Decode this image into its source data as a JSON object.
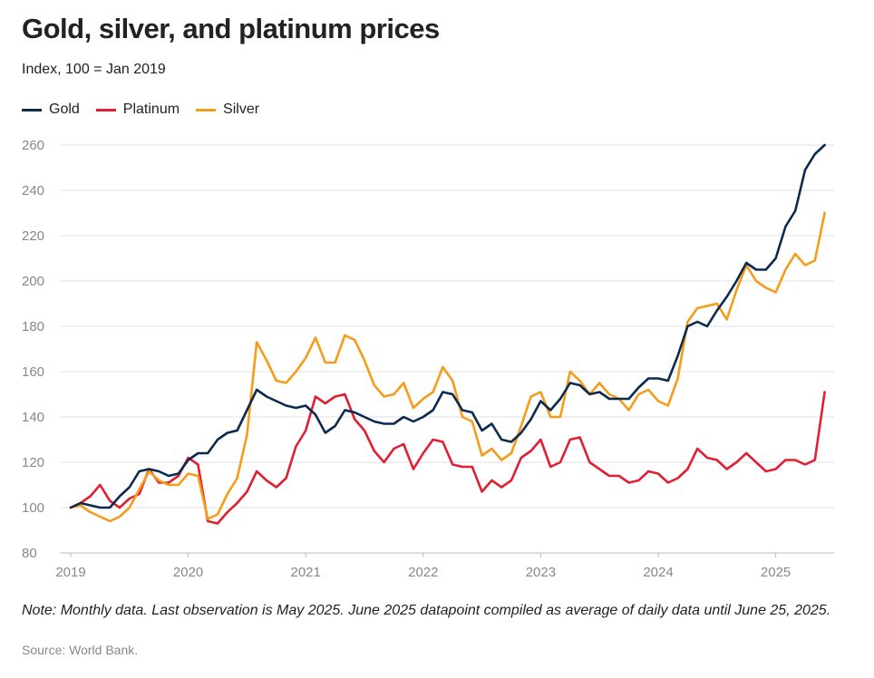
{
  "header": {
    "title": "Gold, silver, and platinum prices",
    "subtitle": "Index, 100 = Jan 2019"
  },
  "footer": {
    "note": "Note: Monthly data. Last observation is May 2025. June 2025 datapoint compiled as average of daily data until June 25, 2025.",
    "source": "Source: World Bank."
  },
  "chart_data": {
    "type": "line",
    "title": "Gold, silver, and platinum prices",
    "subtitle": "Index, 100 = Jan 2019",
    "xlabel": "",
    "ylabel": "",
    "x_start": "2019-01",
    "x_end": "2025-06",
    "x_ticks": [
      "2019",
      "2020",
      "2021",
      "2022",
      "2023",
      "2024",
      "2025"
    ],
    "y_ticks": [
      80,
      100,
      120,
      140,
      160,
      180,
      200,
      220,
      240,
      260
    ],
    "ylim": [
      80,
      265
    ],
    "grid": true,
    "legend_position": "top-left",
    "series": [
      {
        "name": "Gold",
        "color": "#0b2a4f",
        "values": [
          100,
          102,
          101,
          100,
          100,
          105,
          109,
          116,
          117,
          116,
          114,
          115,
          121,
          124,
          124,
          130,
          133,
          134,
          143,
          152,
          149,
          147,
          145,
          144,
          145,
          141,
          133,
          136,
          143,
          142,
          140,
          138,
          137,
          137,
          140,
          138,
          140,
          143,
          151,
          150,
          143,
          142,
          134,
          137,
          130,
          129,
          133,
          139,
          147,
          143,
          148,
          155,
          154,
          150,
          151,
          148,
          148,
          148,
          153,
          157,
          157,
          156,
          167,
          180,
          182,
          180,
          187,
          193,
          200,
          208,
          205,
          205,
          210,
          224,
          231,
          249,
          256,
          260
        ],
        "key": "gold"
      },
      {
        "name": "Platinum",
        "color": "#e02032",
        "values": [
          100,
          102,
          105,
          110,
          103,
          100,
          104,
          106,
          117,
          111,
          111,
          114,
          122,
          119,
          94,
          93,
          98,
          102,
          107,
          116,
          112,
          109,
          113,
          127,
          134,
          149,
          146,
          149,
          150,
          139,
          134,
          125,
          120,
          126,
          128,
          117,
          124,
          130,
          129,
          119,
          118,
          118,
          107,
          112,
          109,
          112,
          122,
          125,
          130,
          118,
          120,
          130,
          131,
          120,
          117,
          114,
          114,
          111,
          112,
          116,
          115,
          111,
          113,
          117,
          126,
          122,
          121,
          117,
          120,
          124,
          120,
          116,
          117,
          121,
          121,
          119,
          121,
          151
        ]
      },
      {
        "name": "Silver",
        "color": "#f59c1a",
        "values": [
          100,
          101,
          98,
          96,
          94,
          96,
          100,
          108,
          116,
          112,
          110,
          110,
          115,
          114,
          95,
          97,
          106,
          113,
          132,
          173,
          165,
          156,
          155,
          160,
          166,
          175,
          164,
          164,
          176,
          174,
          165,
          154,
          149,
          150,
          155,
          144,
          148,
          151,
          162,
          156,
          140,
          138,
          123,
          126,
          121,
          124,
          136,
          149,
          151,
          140,
          140,
          160,
          156,
          150,
          155,
          150,
          148,
          143,
          150,
          152,
          147,
          145,
          157,
          182,
          188,
          189,
          190,
          183,
          196,
          207,
          200,
          197,
          195,
          205,
          212,
          207,
          209,
          230
        ]
      }
    ]
  }
}
